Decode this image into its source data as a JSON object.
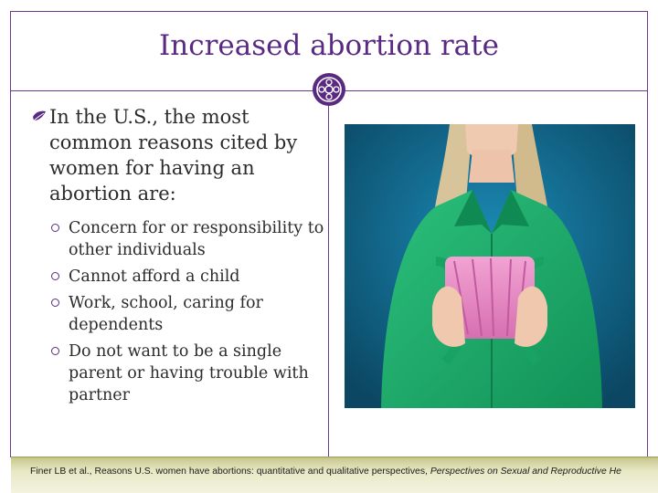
{
  "slide": {
    "title": "Increased abortion rate",
    "main_bullet": "In the U.S., the most common reasons cited by women for having an abortion are:",
    "sub_bullets": [
      "Concern for or responsibility to other individuals",
      "Cannot afford a child",
      "Work, school, caring for dependents",
      "Do not want to be a single parent or having trouble with partner"
    ],
    "citation": {
      "text": "Finer LB et al., Reasons U.S. women have abortions: quantitative and qualitative perspectives, ",
      "journal": "Perspectives on Sexual and Reproductive He"
    }
  },
  "colors": {
    "accent": "#5a2a82",
    "frame": "#6b3a8a",
    "shirt_green": "#1fae6a",
    "wallet_pink": "#e58cc4",
    "photo_background": "#0f6389"
  },
  "icons": {
    "title_medallion": "ornament-medallion-icon",
    "main_bullet": "leaf-bullet-icon",
    "sub_bullet": "ring-bullet-icon"
  }
}
